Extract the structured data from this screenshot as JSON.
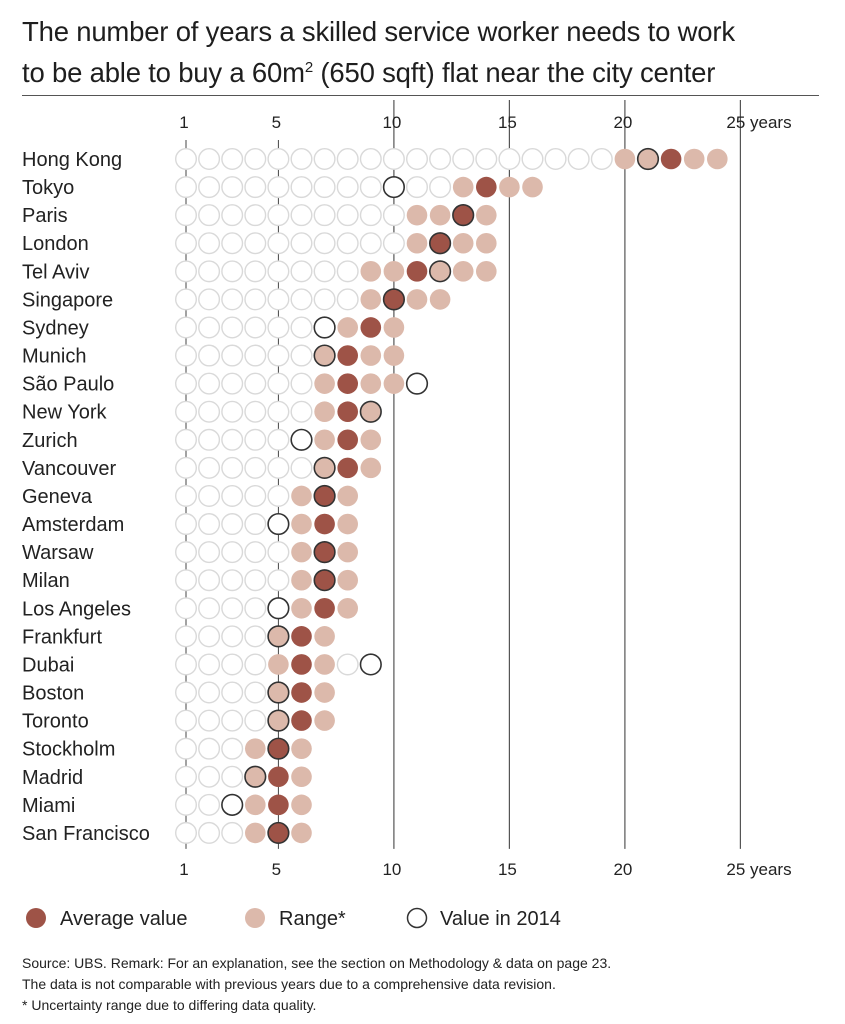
{
  "chart_data": {
    "type": "scatter",
    "title": "The number of years a skilled service worker needs to work to be able to buy a 60m² (650 sqft) flat near the city center",
    "title_line1": "The number of years a skilled service worker needs to work",
    "title_line2a": "to be able to buy a 60m",
    "title_sup": "2",
    "title_line2b": " (650 sqft) flat near the city center",
    "x_ticks": [
      1,
      5,
      10,
      15,
      20,
      25
    ],
    "x_tick_labels": [
      "1",
      "5",
      "10",
      "15",
      "20",
      "25 years"
    ],
    "xlim": [
      1,
      25
    ],
    "grid": true,
    "legend": {
      "placement": "bottom",
      "average": "Average value",
      "range": "Range*",
      "value2014": "Value in 2014"
    },
    "colors": {
      "average": "#9e5347",
      "range": "#dcb9ab",
      "empty": "#d9d9d9",
      "value2014": "#333333"
    },
    "cities": [
      {
        "name": "Hong Kong",
        "range": [
          20,
          24
        ],
        "average": 22,
        "value_2014": 21
      },
      {
        "name": "Tokyo",
        "range": [
          13,
          16
        ],
        "average": 14,
        "value_2014": 10
      },
      {
        "name": "Paris",
        "range": [
          11,
          14
        ],
        "average": 13,
        "value_2014": 13
      },
      {
        "name": "London",
        "range": [
          11,
          14
        ],
        "average": 12,
        "value_2014": 12
      },
      {
        "name": "Tel Aviv",
        "range": [
          9,
          14
        ],
        "average": 11,
        "value_2014": 12
      },
      {
        "name": "Singapore",
        "range": [
          9,
          12
        ],
        "average": 10,
        "value_2014": 10
      },
      {
        "name": "Sydney",
        "range": [
          8,
          10
        ],
        "average": 9,
        "value_2014": 7
      },
      {
        "name": "Munich",
        "range": [
          7,
          10
        ],
        "average": 8,
        "value_2014": 7
      },
      {
        "name": "São Paulo",
        "range": [
          7,
          10
        ],
        "average": 8,
        "value_2014": 11
      },
      {
        "name": "New York",
        "range": [
          7,
          9
        ],
        "average": 8,
        "value_2014": 9
      },
      {
        "name": "Zurich",
        "range": [
          7,
          9
        ],
        "average": 8,
        "value_2014": 6
      },
      {
        "name": "Vancouver",
        "range": [
          7,
          9
        ],
        "average": 8,
        "value_2014": 7
      },
      {
        "name": "Geneva",
        "range": [
          6,
          8
        ],
        "average": 7,
        "value_2014": 7
      },
      {
        "name": "Amsterdam",
        "range": [
          6,
          8
        ],
        "average": 7,
        "value_2014": 5
      },
      {
        "name": "Warsaw",
        "range": [
          6,
          8
        ],
        "average": 7,
        "value_2014": 7
      },
      {
        "name": "Milan",
        "range": [
          6,
          8
        ],
        "average": 7,
        "value_2014": 7
      },
      {
        "name": "Los Angeles",
        "range": [
          6,
          8
        ],
        "average": 7,
        "value_2014": 5
      },
      {
        "name": "Frankfurt",
        "range": [
          5,
          7
        ],
        "average": 6,
        "value_2014": 5
      },
      {
        "name": "Dubai",
        "range": [
          5,
          7
        ],
        "average": 6,
        "value_2014": 9
      },
      {
        "name": "Boston",
        "range": [
          5,
          7
        ],
        "average": 6,
        "value_2014": 5
      },
      {
        "name": "Toronto",
        "range": [
          5,
          7
        ],
        "average": 6,
        "value_2014": 5
      },
      {
        "name": "Stockholm",
        "range": [
          4,
          6
        ],
        "average": 5,
        "value_2014": 5
      },
      {
        "name": "Madrid",
        "range": [
          4,
          6
        ],
        "average": 5,
        "value_2014": 4
      },
      {
        "name": "Miami",
        "range": [
          4,
          6
        ],
        "average": 5,
        "value_2014": 3
      },
      {
        "name": "San Francisco",
        "range": [
          4,
          6
        ],
        "average": 5,
        "value_2014": 5
      }
    ]
  },
  "footnote": {
    "line1": "Source: UBS. Remark: For an explanation, see the section on Methodology & data on page 23.",
    "line2": "The data is not comparable with previous years due to a comprehensive data revision.",
    "line3": "* Uncertainty range due to differing data quality."
  }
}
